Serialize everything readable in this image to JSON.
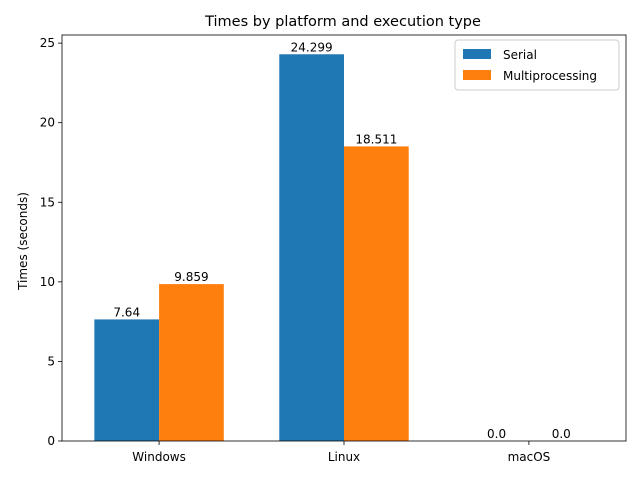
{
  "chart_data": {
    "type": "bar",
    "title": "Times by platform and execution type",
    "xlabel": "",
    "ylabel": "Times (seconds)",
    "categories": [
      "Windows",
      "Linux",
      "macOS"
    ],
    "series": [
      {
        "name": "Serial",
        "values": [
          7.64,
          24.299,
          0.0
        ],
        "labels": [
          "7.64",
          "24.299",
          "0.0"
        ],
        "color": "#1f77b4"
      },
      {
        "name": "Multiprocessing",
        "values": [
          9.859,
          18.511,
          0.0
        ],
        "labels": [
          "9.859",
          "18.511",
          "0.0"
        ],
        "color": "#ff7f0e"
      }
    ],
    "ylim": [
      0,
      25.51
    ],
    "yticks": [
      0,
      5,
      10,
      15,
      20,
      25
    ],
    "ytick_labels": [
      "0",
      "5",
      "10",
      "15",
      "20",
      "25"
    ],
    "legend_position": "top-right",
    "grid": false
  }
}
